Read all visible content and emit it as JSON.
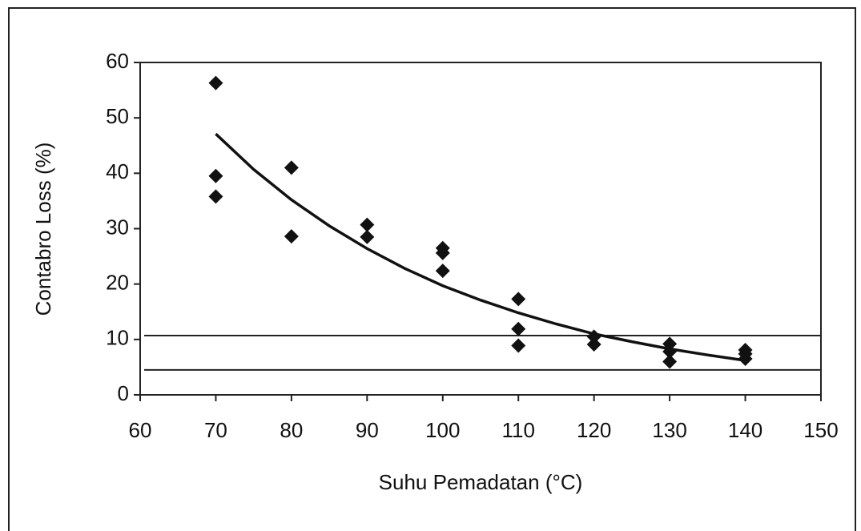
{
  "chart_data": {
    "type": "scatter",
    "x_label": "Suhu Pemadatan (°C)",
    "y_label": "Contabro Loss (%)",
    "series": [
      {
        "color": "#111111",
        "x": [
          70,
          70,
          70,
          80,
          80,
          90,
          90,
          100,
          100,
          100,
          110,
          110,
          110,
          120,
          120,
          130,
          130,
          130,
          140,
          140,
          140
        ],
        "values": [
          56.3,
          39.5,
          35.8,
          41,
          28.6,
          30.7,
          28.5,
          26.5,
          25.6,
          22.4,
          17.3,
          11.9,
          8.9,
          10.5,
          9.1,
          9.2,
          7.8,
          6.0,
          8.1,
          7.4,
          6.5
        ]
      }
    ],
    "trendline": {
      "color": "#111111",
      "x": [
        70,
        75,
        80,
        85,
        90,
        95,
        100,
        105,
        110,
        115,
        120,
        125,
        130,
        135,
        140
      ],
      "values": [
        47.1,
        40.7,
        35.2,
        30.5,
        26.4,
        22.8,
        19.7,
        17.1,
        14.8,
        12.8,
        11.0,
        9.6,
        8.3,
        7.2,
        6.2
      ]
    },
    "reference_lines": [
      10.7,
      4.5
    ],
    "xlim": [
      60,
      150
    ],
    "xticks": [
      60,
      70,
      80,
      90,
      100,
      110,
      120,
      130,
      140,
      150
    ],
    "ylim": [
      0,
      60
    ],
    "yticks": [
      0,
      10,
      20,
      30,
      40,
      50,
      60
    ]
  }
}
